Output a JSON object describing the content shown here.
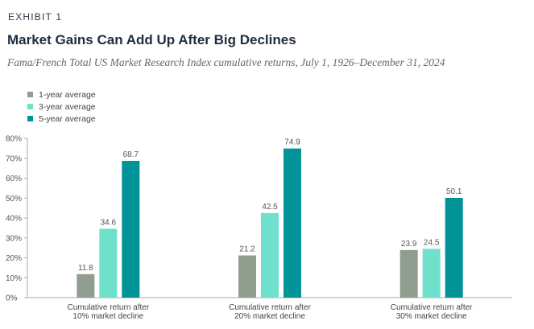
{
  "header": {
    "exhibit": "EXHIBIT 1",
    "title": "Market Gains Can Add Up After Big Declines",
    "subtitle": "Fama/French Total US Market Research Index cumulative returns, July 1, 1926–December 31, 2024"
  },
  "colors": {
    "one_year": "#8f9e8f",
    "three_year": "#6ee0cc",
    "five_year": "#009398",
    "axis": "#aaaaaa"
  },
  "chart_data": {
    "type": "bar",
    "title": "Market Gains Can Add Up After Big Declines",
    "categories": [
      [
        "Cumulative return after",
        "10% market decline"
      ],
      [
        "Cumulative return after",
        "20% market decline"
      ],
      [
        "Cumulative return after",
        "30% market decline"
      ]
    ],
    "series": [
      {
        "name": "1-year average",
        "values": [
          11.8,
          21.2,
          23.9
        ]
      },
      {
        "name": "3-year average",
        "values": [
          34.6,
          42.5,
          24.5
        ]
      },
      {
        "name": "5-year average",
        "values": [
          68.7,
          74.9,
          50.1
        ]
      }
    ],
    "y_ticks": [
      "0%",
      "10%",
      "20%",
      "30%",
      "40%",
      "50%",
      "60%",
      "70%",
      "80%"
    ],
    "ylim": [
      0,
      80
    ],
    "xlabel": "",
    "ylabel": "",
    "grid": false,
    "legend_position": "top-left"
  }
}
